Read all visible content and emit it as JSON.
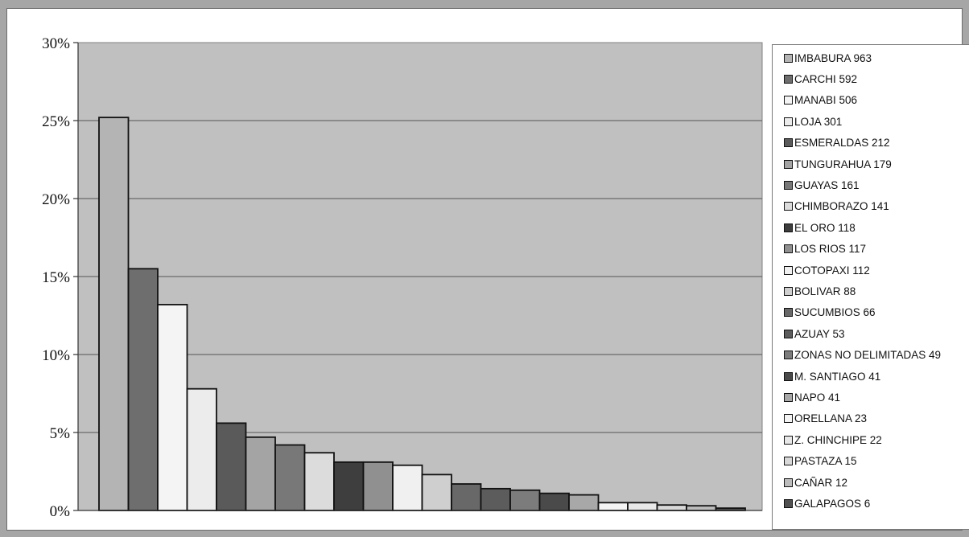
{
  "chart_data": {
    "type": "bar",
    "title": "",
    "xlabel": "",
    "ylabel": "",
    "ylim": [
      0,
      30
    ],
    "yticks": [
      "0%",
      "5%",
      "10%",
      "15%",
      "20%",
      "25%",
      "30%"
    ],
    "grid": true,
    "legend_position": "right",
    "plot_background": "#c0c0c0",
    "series": [
      {
        "name": "IMBABURA 963",
        "value": 25.2,
        "color": "#b4b4b4"
      },
      {
        "name": "CARCHI 592",
        "value": 15.5,
        "color": "#6e6e6e"
      },
      {
        "name": "MANABI 506",
        "value": 13.2,
        "color": "#f4f4f4"
      },
      {
        "name": "LOJA 301",
        "value": 7.8,
        "color": "#ececec"
      },
      {
        "name": "ESMERALDAS 212",
        "value": 5.6,
        "color": "#5a5a5a"
      },
      {
        "name": "TUNGURAHUA 179",
        "value": 4.7,
        "color": "#a4a4a4"
      },
      {
        "name": "GUAYAS 161",
        "value": 4.2,
        "color": "#787878"
      },
      {
        "name": "CHIMBORAZO 141",
        "value": 3.7,
        "color": "#dcdcdc"
      },
      {
        "name": "EL ORO 118",
        "value": 3.1,
        "color": "#3e3e3e"
      },
      {
        "name": "LOS RIOS 117",
        "value": 3.1,
        "color": "#909090"
      },
      {
        "name": "COTOPAXI 112",
        "value": 2.9,
        "color": "#f0f0f0"
      },
      {
        "name": "BOLIVAR 88",
        "value": 2.3,
        "color": "#cfcfcf"
      },
      {
        "name": "SUCUMBIOS 66",
        "value": 1.7,
        "color": "#686868"
      },
      {
        "name": "AZUAY 53",
        "value": 1.4,
        "color": "#5c5c5c"
      },
      {
        "name": "ZONAS NO DELIMITADAS 49",
        "value": 1.3,
        "color": "#7c7c7c"
      },
      {
        "name": "M. SANTIAGO 41",
        "value": 1.1,
        "color": "#4a4a4a"
      },
      {
        "name": "NAPO 41",
        "value": 1.0,
        "color": "#a8a8a8"
      },
      {
        "name": "ORELLANA 23",
        "value": 0.5,
        "color": "#f4f4f4"
      },
      {
        "name": "Z. CHINCHIPE 22",
        "value": 0.5,
        "color": "#e8e8e8"
      },
      {
        "name": "PASTAZA 15",
        "value": 0.35,
        "color": "#d8d8d8"
      },
      {
        "name": "CAÑAR 12",
        "value": 0.3,
        "color": "#bcbcbc"
      },
      {
        "name": "GALAPAGOS 6",
        "value": 0.15,
        "color": "#505050"
      }
    ]
  }
}
